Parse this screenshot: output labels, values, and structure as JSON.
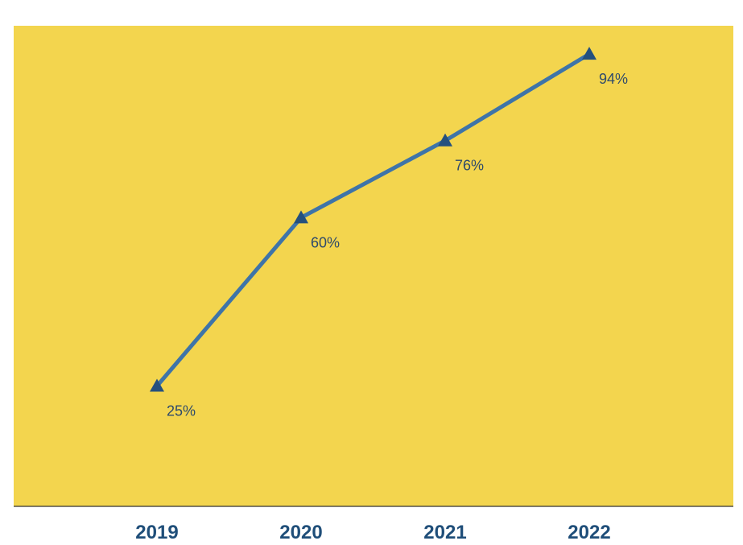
{
  "chart_data": {
    "type": "line",
    "categories": [
      "2019",
      "2020",
      "2021",
      "2022"
    ],
    "values": [
      25,
      60,
      76,
      94
    ],
    "data_labels": [
      "25%",
      "60%",
      "76%",
      "94%"
    ],
    "y_unit": "%",
    "ylim": [
      0,
      100
    ],
    "grid": false,
    "legend": "none",
    "marker": "triangle",
    "colors": {
      "plot_background": "#F3D54E",
      "line": "#3E74A8",
      "marker": "#24507E",
      "label_text": "#2E4A6B",
      "tick_text": "#1F4E79",
      "axis_line": "#333333"
    }
  }
}
